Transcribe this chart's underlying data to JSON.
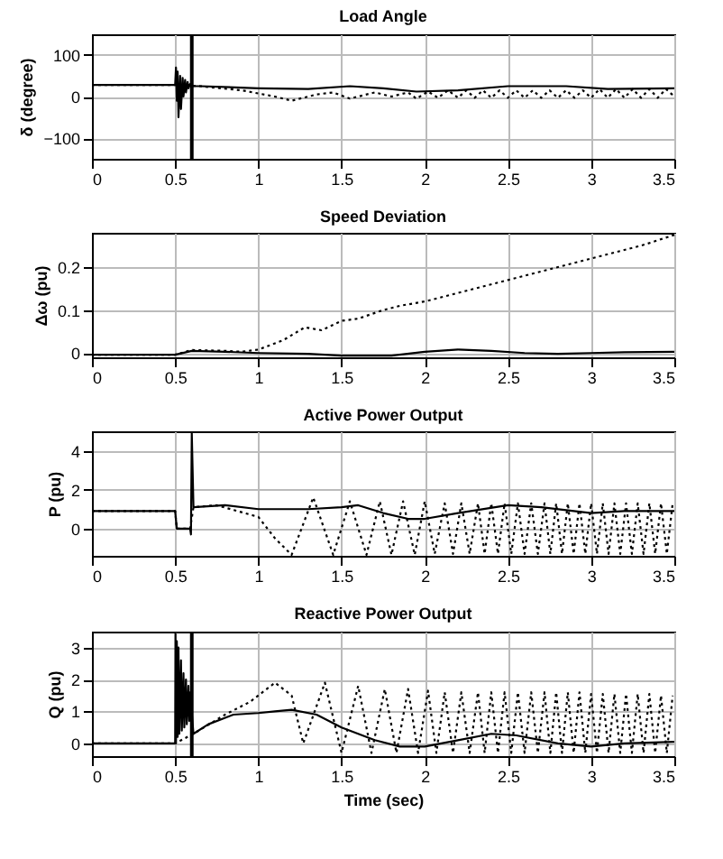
{
  "chart_data": [
    {
      "type": "line",
      "title": "Load Angle",
      "ylabel": "δ (degree)",
      "xlim": [
        0,
        3.5
      ],
      "xticks": [
        0,
        0.5,
        1,
        1.5,
        2,
        2.5,
        3,
        3.5
      ],
      "ylim": [
        -150,
        150
      ],
      "yticks": [
        -100,
        0,
        100
      ],
      "grid": true,
      "ref_lines": [
        {
          "axis": "x",
          "value": 0.6,
          "color": "#000000"
        }
      ],
      "series": [
        {
          "color": "#000000",
          "line_style": "solid",
          "x": [
            0,
            0.5,
            0.505,
            0.51,
            0.515,
            0.52,
            0.53,
            0.535,
            0.545,
            0.55,
            0.56,
            0.565,
            0.575,
            0.58,
            0.59,
            0.6,
            0.65,
            1.0,
            1.3,
            1.55,
            1.75,
            1.95,
            2.2,
            2.5,
            2.85,
            3.1,
            3.5
          ],
          "values": [
            28,
            28,
            70,
            -10,
            60,
            -50,
            50,
            -30,
            45,
            0,
            40,
            10,
            35,
            20,
            30,
            25,
            25,
            20,
            18,
            25,
            20,
            12,
            15,
            25,
            25,
            18,
            20
          ]
        },
        {
          "color": "#000000",
          "line_style": "dotted",
          "x": [
            0,
            0.5,
            0.65,
            0.9,
            1.1,
            1.2,
            1.35,
            1.45,
            1.55,
            1.7,
            1.8,
            1.9,
            1.95,
            2.02,
            2.08,
            2.14,
            2.2,
            2.25,
            2.3,
            2.35,
            2.4,
            2.45,
            2.5,
            2.55,
            2.6,
            2.65,
            2.7,
            2.75,
            2.8,
            2.85,
            2.9,
            2.95,
            3.0,
            3.05,
            3.1,
            3.15,
            3.2,
            3.25,
            3.3,
            3.35,
            3.4,
            3.45,
            3.5
          ],
          "values": [
            28,
            28,
            25,
            15,
            0,
            -10,
            5,
            10,
            -5,
            10,
            0,
            10,
            -5,
            12,
            -3,
            15,
            -3,
            15,
            -3,
            15,
            -3,
            15,
            -3,
            15,
            -3,
            15,
            -3,
            15,
            -3,
            15,
            -3,
            15,
            -3,
            18,
            -3,
            18,
            -3,
            18,
            -3,
            18,
            -3,
            18,
            0
          ]
        }
      ]
    },
    {
      "type": "line",
      "title": "Speed Deviation",
      "ylabel": "Δω (pu)",
      "xlim": [
        0,
        3.5
      ],
      "xticks": [
        0,
        0.5,
        1,
        1.5,
        2,
        2.5,
        3,
        3.5
      ],
      "ylim": [
        -0.01,
        0.28
      ],
      "yticks": [
        0,
        0.1,
        0.2
      ],
      "grid": true,
      "series": [
        {
          "color": "#000000",
          "line_style": "solid",
          "x": [
            0,
            0.5,
            0.6,
            0.8,
            1.0,
            1.3,
            1.5,
            1.8,
            2.0,
            2.2,
            2.4,
            2.6,
            2.8,
            3.0,
            3.2,
            3.5
          ],
          "values": [
            -0.004,
            -0.004,
            0.005,
            0.003,
            0,
            -0.002,
            -0.006,
            -0.006,
            0.003,
            0.008,
            0.005,
            0,
            -0.002,
            0,
            0.002,
            0.003
          ]
        },
        {
          "color": "#000000",
          "line_style": "dotted",
          "x": [
            0,
            0.5,
            0.6,
            0.8,
            0.9,
            1.0,
            1.15,
            1.28,
            1.38,
            1.5,
            1.6,
            1.75,
            1.85,
            2.0,
            2.15,
            2.3,
            2.5,
            2.7,
            2.9,
            3.1,
            3.3,
            3.5
          ],
          "values": [
            -0.004,
            -0.004,
            0.007,
            0.005,
            0.003,
            0.008,
            0.03,
            0.06,
            0.053,
            0.075,
            0.08,
            0.1,
            0.11,
            0.12,
            0.135,
            0.15,
            0.17,
            0.19,
            0.21,
            0.23,
            0.25,
            0.275
          ]
        }
      ]
    },
    {
      "type": "line",
      "title": "Active Power Output",
      "ylabel": "P (pu)",
      "xlim": [
        0,
        3.5
      ],
      "xticks": [
        0,
        0.5,
        1,
        1.5,
        2,
        2.5,
        3,
        3.5
      ],
      "ylim": [
        -1.4,
        5
      ],
      "yticks": [
        0,
        2,
        4
      ],
      "grid": true,
      "series": [
        {
          "color": "#000000",
          "line_style": "solid",
          "x": [
            0,
            0.5,
            0.51,
            0.59,
            0.595,
            0.6,
            0.61,
            0.8,
            1.0,
            1.3,
            1.5,
            1.6,
            1.75,
            1.9,
            2.0,
            2.2,
            2.5,
            2.7,
            3.0,
            3.2,
            3.5
          ],
          "values": [
            0.9,
            0.9,
            0,
            0,
            -0.3,
            4.9,
            1.1,
            1.2,
            1.0,
            1.0,
            1.1,
            1.2,
            0.8,
            0.5,
            0.5,
            0.8,
            1.2,
            1.1,
            0.8,
            0.9,
            0.9
          ]
        },
        {
          "color": "#000000",
          "line_style": "dotted",
          "x": [
            0,
            0.5,
            0.51,
            0.59,
            0.61,
            0.75,
            1.0,
            1.1,
            1.2,
            1.33,
            1.45,
            1.55,
            1.65,
            1.73,
            1.8,
            1.87,
            1.94,
            2.0,
            2.06,
            2.12,
            2.17,
            2.22,
            2.27,
            2.32,
            2.36,
            2.4,
            2.44,
            2.48,
            2.52,
            2.56,
            2.6,
            2.64,
            2.68,
            2.72,
            2.755,
            2.79,
            2.825,
            2.86,
            2.895,
            2.93,
            2.965,
            3.0,
            3.035,
            3.07,
            3.105,
            3.14,
            3.175,
            3.21,
            3.245,
            3.28,
            3.315,
            3.35,
            3.385,
            3.42,
            3.455,
            3.49
          ],
          "values": [
            0.9,
            0.9,
            0,
            0,
            1.1,
            1.2,
            0.6,
            -0.5,
            -1.35,
            1.6,
            -1.35,
            1.4,
            -1.35,
            1.4,
            -1.35,
            1.4,
            -1.35,
            1.4,
            -1.3,
            1.3,
            -1.3,
            1.3,
            -1.3,
            1.3,
            -1.3,
            1.3,
            -1.3,
            1.3,
            -1.3,
            1.3,
            -1.3,
            1.3,
            -1.3,
            1.3,
            -1.3,
            1.3,
            -1.3,
            1.3,
            -1.3,
            1.3,
            -1.3,
            1.3,
            -1.3,
            1.3,
            -1.3,
            1.3,
            -1.3,
            1.3,
            -1.3,
            1.3,
            -1.3,
            1.3,
            -1.3,
            1.3,
            -1.3,
            1.3
          ]
        }
      ]
    },
    {
      "type": "line",
      "title": "Reactive Power Output",
      "xlabel": "Time (sec)",
      "ylabel": "Q (pu)",
      "xlim": [
        0,
        3.5
      ],
      "xticks": [
        0,
        0.5,
        1,
        1.5,
        2,
        2.5,
        3,
        3.5
      ],
      "ylim": [
        -0.4,
        3.5
      ],
      "yticks": [
        0,
        1,
        2,
        3
      ],
      "grid": true,
      "ref_lines": [
        {
          "axis": "x",
          "value": 0.6,
          "color": "#000000"
        }
      ],
      "series": [
        {
          "color": "#000000",
          "line_style": "solid",
          "x": [
            0,
            0.5,
            0.502,
            0.505,
            0.51,
            0.515,
            0.52,
            0.525,
            0.535,
            0.54,
            0.55,
            0.555,
            0.565,
            0.57,
            0.58,
            0.585,
            0.59,
            0.61,
            0.7,
            0.85,
            1.0,
            1.1,
            1.2,
            1.35,
            1.5,
            1.7,
            1.85,
            2.0,
            2.2,
            2.4,
            2.55,
            2.8,
            3.0,
            3.2,
            3.5
          ],
          "values": [
            0,
            0,
            3.45,
            0,
            3.2,
            0.2,
            3.0,
            0.3,
            2.6,
            0.4,
            2.2,
            0.5,
            2.0,
            0.6,
            1.8,
            0.7,
            1.6,
            0.3,
            0.6,
            0.9,
            0.95,
            1.0,
            1.05,
            0.9,
            0.5,
            0.1,
            -0.1,
            -0.1,
            0.1,
            0.3,
            0.25,
            0,
            -0.1,
            0,
            0.05
          ]
        },
        {
          "color": "#000000",
          "line_style": "dotted",
          "x": [
            0,
            0.5,
            0.61,
            0.8,
            0.95,
            1.05,
            1.1,
            1.2,
            1.27,
            1.4,
            1.5,
            1.6,
            1.68,
            1.76,
            1.83,
            1.9,
            1.96,
            2.02,
            2.07,
            2.12,
            2.17,
            2.22,
            2.27,
            2.32,
            2.36,
            2.4,
            2.44,
            2.48,
            2.52,
            2.56,
            2.6,
            2.64,
            2.68,
            2.72,
            2.755,
            2.79,
            2.825,
            2.86,
            2.895,
            2.93,
            2.965,
            3.0,
            3.035,
            3.07,
            3.105,
            3.14,
            3.175,
            3.21,
            3.245,
            3.28,
            3.315,
            3.35,
            3.385,
            3.42,
            3.455,
            3.49
          ],
          "values": [
            0,
            0,
            0.3,
            0.9,
            1.3,
            1.7,
            1.9,
            1.5,
            0,
            1.9,
            -0.3,
            1.8,
            -0.3,
            1.7,
            -0.3,
            1.7,
            -0.3,
            1.65,
            -0.3,
            1.6,
            -0.3,
            1.6,
            -0.3,
            1.6,
            -0.3,
            1.6,
            -0.3,
            1.6,
            -0.3,
            1.6,
            -0.3,
            1.6,
            -0.3,
            1.6,
            -0.3,
            1.6,
            -0.3,
            1.6,
            -0.3,
            1.6,
            -0.3,
            1.55,
            -0.3,
            1.55,
            -0.3,
            1.55,
            -0.3,
            1.55,
            -0.3,
            1.55,
            -0.3,
            1.55,
            -0.3,
            1.5,
            -0.3,
            1.5
          ]
        }
      ]
    }
  ]
}
